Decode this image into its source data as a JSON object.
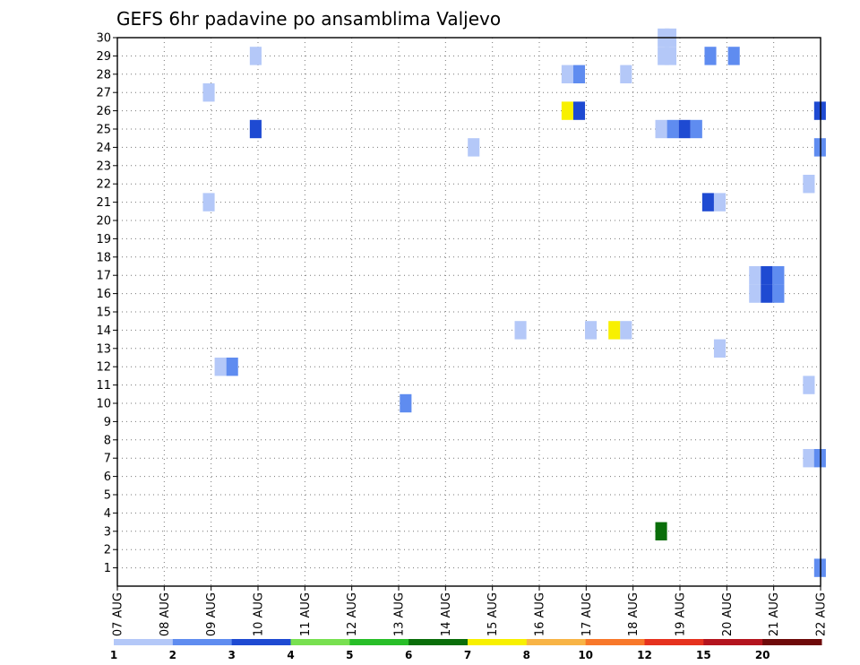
{
  "chart_data": {
    "type": "heatmap",
    "title": "GEFS 6hr padavine po ansamblima Valjevo",
    "x_tick_labels": [
      "07 AUG",
      "08 AUG",
      "09 AUG",
      "10 AUG",
      "11 AUG",
      "12 AUG",
      "13 AUG",
      "14 AUG",
      "15 AUG",
      "16 AUG",
      "17 AUG",
      "18 AUG",
      "19 AUG",
      "20 AUG",
      "21 AUG",
      "22 AUG"
    ],
    "y_tick_labels": [
      "1",
      "2",
      "3",
      "4",
      "5",
      "6",
      "7",
      "8",
      "9",
      "10",
      "11",
      "12",
      "13",
      "14",
      "15",
      "16",
      "17",
      "18",
      "19",
      "20",
      "21",
      "22",
      "23",
      "24",
      "25",
      "26",
      "27",
      "28",
      "29",
      "30"
    ],
    "x_range_days": [
      0,
      15
    ],
    "y_range": [
      0,
      30
    ],
    "grid": true,
    "colorbar": {
      "labels": [
        "1",
        "2",
        "3",
        "4",
        "5",
        "6",
        "7",
        "8",
        "10",
        "12",
        "15",
        "20"
      ],
      "colors": [
        "#b4c8f8",
        "#5f8cf0",
        "#1e4ad2",
        "#78e050",
        "#28be28",
        "#0a6e0a",
        "#f8f000",
        "#f8b446",
        "#f8782a",
        "#e6321e",
        "#b4141e",
        "#6e0a0a"
      ]
    },
    "cells": [
      {
        "day": 2.95,
        "member": 29,
        "color": "#b4c8f8"
      },
      {
        "day": 11.65,
        "member": 29,
        "color": "#b4c8f8"
      },
      {
        "day": 11.8,
        "member": 29,
        "color": "#b4c8f8"
      },
      {
        "day": 12.65,
        "member": 29,
        "color": "#5f8cf0"
      },
      {
        "day": 13.15,
        "member": 29,
        "color": "#5f8cf0"
      },
      {
        "day": 9.6,
        "member": 28,
        "color": "#b4c8f8"
      },
      {
        "day": 9.85,
        "member": 28,
        "color": "#5f8cf0"
      },
      {
        "day": 10.85,
        "member": 28,
        "color": "#b4c8f8"
      },
      {
        "day": 11.65,
        "member": 30,
        "color": "#b4c8f8"
      },
      {
        "day": 11.8,
        "member": 30,
        "color": "#b4c8f8"
      },
      {
        "day": 1.95,
        "member": 27,
        "color": "#b4c8f8"
      },
      {
        "day": 9.6,
        "member": 26,
        "color": "#f8f000"
      },
      {
        "day": 9.85,
        "member": 26,
        "color": "#1e4ad2"
      },
      {
        "day": 14.95,
        "member": 26,
        "color": "#1e4ad2"
      },
      {
        "day": 2.95,
        "member": 25,
        "color": "#1e4ad2"
      },
      {
        "day": 11.6,
        "member": 25,
        "color": "#b4c8f8"
      },
      {
        "day": 11.85,
        "member": 25,
        "color": "#5f8cf0"
      },
      {
        "day": 12.1,
        "member": 25,
        "color": "#1e4ad2"
      },
      {
        "day": 12.35,
        "member": 25,
        "color": "#5f8cf0"
      },
      {
        "day": 7.6,
        "member": 24,
        "color": "#b4c8f8"
      },
      {
        "day": 14.95,
        "member": 24,
        "color": "#5f8cf0"
      },
      {
        "day": 14.75,
        "member": 22,
        "color": "#b4c8f8"
      },
      {
        "day": 1.95,
        "member": 21,
        "color": "#b4c8f8"
      },
      {
        "day": 12.6,
        "member": 21,
        "color": "#1e4ad2"
      },
      {
        "day": 12.85,
        "member": 21,
        "color": "#b4c8f8"
      },
      {
        "day": 13.6,
        "member": 17,
        "color": "#b4c8f8"
      },
      {
        "day": 13.85,
        "member": 17,
        "color": "#1e4ad2"
      },
      {
        "day": 14.1,
        "member": 17,
        "color": "#5f8cf0"
      },
      {
        "day": 13.6,
        "member": 16,
        "color": "#b4c8f8"
      },
      {
        "day": 13.85,
        "member": 16,
        "color": "#1e4ad2"
      },
      {
        "day": 14.1,
        "member": 16,
        "color": "#5f8cf0"
      },
      {
        "day": 8.6,
        "member": 14,
        "color": "#b4c8f8"
      },
      {
        "day": 10.1,
        "member": 14,
        "color": "#b4c8f8"
      },
      {
        "day": 10.6,
        "member": 14,
        "color": "#f8f000"
      },
      {
        "day": 10.85,
        "member": 14,
        "color": "#b4c8f8"
      },
      {
        "day": 12.85,
        "member": 13,
        "color": "#b4c8f8"
      },
      {
        "day": 2.2,
        "member": 12,
        "color": "#b4c8f8"
      },
      {
        "day": 2.45,
        "member": 12,
        "color": "#5f8cf0"
      },
      {
        "day": 14.75,
        "member": 11,
        "color": "#b4c8f8"
      },
      {
        "day": 6.15,
        "member": 10,
        "color": "#5f8cf0"
      },
      {
        "day": 14.75,
        "member": 7,
        "color": "#b4c8f8"
      },
      {
        "day": 14.95,
        "member": 7,
        "color": "#5f8cf0"
      },
      {
        "day": 11.6,
        "member": 3,
        "color": "#0a6e0a"
      },
      {
        "day": 14.95,
        "member": 1,
        "color": "#5f8cf0"
      }
    ]
  }
}
